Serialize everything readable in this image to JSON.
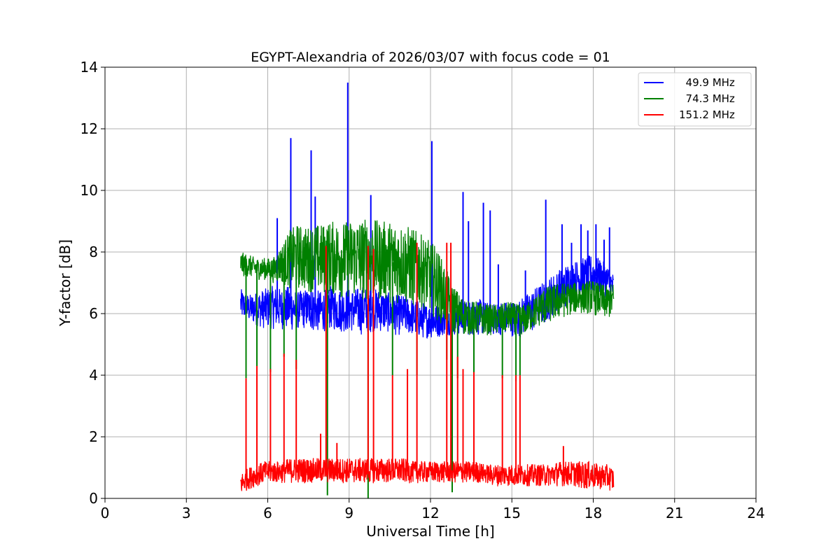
{
  "chart_data": {
    "type": "line",
    "title": "EGYPT-Alexandria of 2026/03/07 with focus code = 01",
    "xlabel": "Universal Time [h]",
    "ylabel": "Y-factor [dB]",
    "xlim": [
      0,
      24
    ],
    "ylim": [
      0,
      14
    ],
    "xticks": [
      "0",
      "3",
      "6",
      "9",
      "12",
      "15",
      "18",
      "21",
      "24"
    ],
    "yticks": [
      "0",
      "2",
      "4",
      "6",
      "8",
      "10",
      "12",
      "14"
    ],
    "grid": true,
    "legend_position": "top-right",
    "series": [
      {
        "name": "49.9 MHz",
        "legend_label": "  49.9 MHz",
        "color": "#0000ff",
        "x": [
          5.0,
          5.3,
          5.6,
          5.9,
          6.2,
          6.5,
          6.8,
          7.1,
          7.4,
          7.7,
          8.0,
          8.3,
          8.6,
          8.9,
          9.2,
          9.5,
          9.8,
          10.1,
          10.4,
          10.7,
          11.0,
          11.3,
          11.6,
          11.9,
          12.2,
          12.5,
          12.8,
          13.1,
          13.4,
          13.7,
          14.0,
          14.3,
          14.6,
          14.9,
          15.2,
          15.5,
          15.8,
          16.1,
          16.4,
          16.7,
          17.0,
          17.3,
          17.6,
          17.9,
          18.2,
          18.5,
          18.75
        ],
        "low": [
          5.8,
          5.7,
          5.6,
          5.5,
          5.5,
          5.5,
          5.4,
          5.5,
          5.5,
          5.4,
          5.4,
          5.5,
          5.4,
          5.4,
          5.4,
          5.3,
          5.4,
          5.4,
          5.4,
          5.3,
          5.3,
          5.3,
          5.2,
          5.2,
          5.2,
          5.3,
          5.3,
          5.3,
          5.3,
          5.3,
          5.3,
          5.3,
          5.3,
          5.3,
          5.2,
          5.3,
          5.4,
          5.6,
          5.8,
          6.0,
          6.2,
          6.4,
          6.5,
          6.6,
          6.6,
          6.5,
          6.3
        ],
        "high": [
          6.8,
          6.6,
          6.7,
          6.8,
          6.9,
          6.8,
          6.9,
          6.7,
          6.8,
          6.8,
          6.7,
          6.9,
          6.8,
          6.8,
          6.8,
          6.9,
          6.8,
          6.8,
          6.7,
          6.6,
          6.6,
          6.5,
          6.4,
          6.3,
          6.3,
          6.2,
          6.2,
          6.4,
          6.4,
          6.5,
          6.4,
          6.3,
          6.4,
          6.4,
          6.4,
          6.6,
          6.8,
          7.0,
          7.2,
          7.4,
          7.6,
          7.7,
          7.8,
          7.9,
          7.8,
          7.6,
          7.3
        ],
        "spikes": [
          [
            6.35,
            9.1
          ],
          [
            6.85,
            11.7
          ],
          [
            7.6,
            11.3
          ],
          [
            7.75,
            9.8
          ],
          [
            8.95,
            13.5
          ],
          [
            9.8,
            9.85
          ],
          [
            12.05,
            11.6
          ],
          [
            13.2,
            9.95
          ],
          [
            13.4,
            9.0
          ],
          [
            13.95,
            9.6
          ],
          [
            14.2,
            9.35
          ],
          [
            14.5,
            7.6
          ],
          [
            15.5,
            7.4
          ],
          [
            16.25,
            9.7
          ],
          [
            16.85,
            8.9
          ],
          [
            17.2,
            8.3
          ],
          [
            17.55,
            8.9
          ],
          [
            17.8,
            8.7
          ],
          [
            18.1,
            8.9
          ],
          [
            18.4,
            8.4
          ],
          [
            18.6,
            8.8
          ]
        ]
      },
      {
        "name": "74.3 MHz",
        "legend_label": "  74.3 MHz",
        "color": "#008000",
        "x": [
          5.0,
          5.3,
          5.6,
          5.9,
          6.2,
          6.5,
          6.8,
          7.1,
          7.4,
          7.7,
          8.0,
          8.3,
          8.6,
          8.9,
          9.2,
          9.5,
          9.8,
          10.1,
          10.4,
          10.7,
          11.0,
          11.3,
          11.6,
          11.9,
          12.2,
          12.5,
          12.8,
          13.1,
          13.4,
          13.7,
          14.0,
          14.3,
          14.6,
          14.9,
          15.2,
          15.5,
          15.8,
          16.1,
          16.4,
          16.7,
          17.0,
          17.3,
          17.6,
          17.9,
          18.2,
          18.5,
          18.75
        ],
        "low": [
          7.2,
          7.2,
          7.1,
          7.1,
          7.0,
          7.0,
          6.8,
          6.8,
          6.7,
          6.7,
          6.6,
          6.6,
          6.5,
          6.5,
          6.5,
          6.4,
          6.4,
          6.4,
          6.4,
          6.3,
          6.3,
          6.2,
          6.2,
          6.1,
          5.8,
          5.6,
          5.4,
          5.3,
          5.3,
          5.3,
          5.3,
          5.3,
          5.3,
          5.4,
          5.3,
          5.3,
          5.5,
          5.6,
          5.7,
          5.8,
          5.9,
          6.0,
          6.0,
          6.0,
          5.9,
          5.8,
          5.9
        ],
        "high": [
          8.0,
          7.9,
          7.8,
          7.8,
          7.8,
          8.2,
          8.7,
          8.9,
          8.8,
          8.9,
          8.9,
          9.0,
          9.0,
          9.0,
          9.1,
          9.1,
          9.1,
          9.0,
          9.0,
          9.0,
          8.9,
          8.8,
          8.6,
          8.4,
          8.2,
          7.6,
          7.0,
          6.6,
          6.4,
          6.4,
          6.3,
          6.3,
          6.3,
          6.4,
          6.3,
          6.3,
          6.5,
          6.8,
          6.9,
          7.0,
          7.0,
          7.0,
          7.0,
          7.1,
          7.0,
          6.9,
          7.0
        ],
        "spikes": [
          [
            5.2,
            3.9
          ],
          [
            5.6,
            4.0
          ],
          [
            6.1,
            4.1
          ],
          [
            6.6,
            4.6
          ],
          [
            7.05,
            4.2
          ],
          [
            8.2,
            0.1
          ],
          [
            9.7,
            0.0
          ],
          [
            10.6,
            4.0
          ],
          [
            11.5,
            4.0
          ],
          [
            12.6,
            4.5
          ],
          [
            12.8,
            0.2
          ],
          [
            13.0,
            3.9
          ],
          [
            13.6,
            4.0
          ],
          [
            14.65,
            3.9
          ],
          [
            15.15,
            3.8
          ],
          [
            15.3,
            4.0
          ]
        ]
      },
      {
        "name": "151.2 MHz",
        "legend_label": "151.2 MHz",
        "color": "#ff0000",
        "x": [
          5.0,
          5.3,
          5.6,
          5.9,
          6.2,
          6.5,
          6.8,
          7.1,
          7.4,
          7.7,
          8.0,
          8.3,
          8.6,
          8.9,
          9.2,
          9.5,
          9.8,
          10.1,
          10.4,
          10.7,
          11.0,
          11.3,
          11.6,
          11.9,
          12.2,
          12.5,
          12.8,
          13.1,
          13.4,
          13.7,
          14.0,
          14.3,
          14.6,
          14.9,
          15.2,
          15.5,
          15.8,
          16.1,
          16.4,
          16.7,
          17.0,
          17.3,
          17.6,
          17.9,
          18.2,
          18.5,
          18.75
        ],
        "low": [
          0.1,
          0.3,
          0.4,
          0.5,
          0.5,
          0.5,
          0.5,
          0.5,
          0.5,
          0.5,
          0.5,
          0.5,
          0.5,
          0.5,
          0.5,
          0.5,
          0.5,
          0.5,
          0.5,
          0.5,
          0.5,
          0.5,
          0.5,
          0.5,
          0.5,
          0.5,
          0.5,
          0.5,
          0.5,
          0.5,
          0.5,
          0.4,
          0.4,
          0.4,
          0.4,
          0.4,
          0.4,
          0.4,
          0.4,
          0.4,
          0.4,
          0.4,
          0.3,
          0.3,
          0.3,
          0.3,
          0.2
        ],
        "high": [
          0.8,
          1.0,
          1.1,
          1.2,
          1.2,
          1.2,
          1.3,
          1.3,
          1.3,
          1.3,
          1.3,
          1.3,
          1.3,
          1.3,
          1.3,
          1.3,
          1.3,
          1.3,
          1.3,
          1.3,
          1.3,
          1.2,
          1.2,
          1.2,
          1.2,
          1.2,
          1.2,
          1.2,
          1.2,
          1.2,
          1.1,
          1.1,
          1.1,
          1.1,
          1.1,
          1.1,
          1.1,
          1.1,
          1.1,
          1.2,
          1.2,
          1.2,
          1.2,
          1.2,
          1.1,
          1.1,
          1.0
        ],
        "spikes": [
          [
            5.2,
            3.9
          ],
          [
            5.6,
            4.3
          ],
          [
            6.1,
            4.2
          ],
          [
            6.6,
            4.7
          ],
          [
            7.05,
            4.5
          ],
          [
            8.15,
            8.2
          ],
          [
            9.7,
            8.2
          ],
          [
            9.9,
            8.1
          ],
          [
            10.6,
            4.0
          ],
          [
            11.15,
            4.2
          ],
          [
            11.5,
            8.3
          ],
          [
            12.6,
            8.3
          ],
          [
            12.75,
            8.3
          ],
          [
            13.0,
            4.6
          ],
          [
            13.2,
            4.2
          ],
          [
            13.6,
            4.1
          ],
          [
            14.65,
            4.0
          ],
          [
            15.15,
            4.0
          ],
          [
            15.3,
            4.0
          ],
          [
            16.9,
            1.7
          ],
          [
            7.95,
            2.1
          ],
          [
            8.55,
            1.8
          ]
        ]
      }
    ]
  }
}
